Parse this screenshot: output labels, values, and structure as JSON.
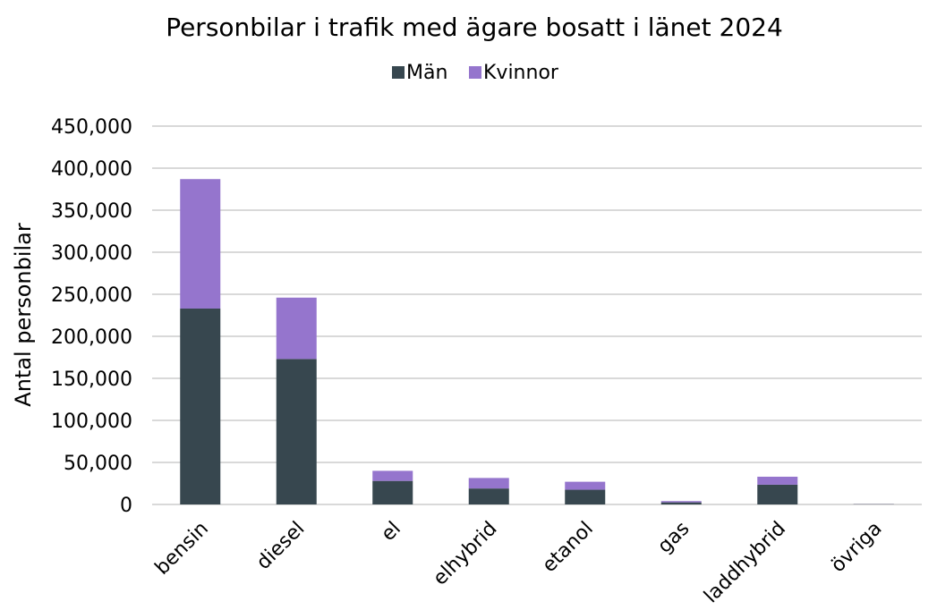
{
  "chart_data": {
    "type": "bar",
    "stacked": true,
    "title": "Personbilar i trafik med ägare bosatt i länet 2024",
    "xlabel": "",
    "ylabel": "Antal personbilar",
    "ylim": [
      0,
      450000
    ],
    "y_ticks": [
      0,
      50000,
      100000,
      150000,
      200000,
      250000,
      300000,
      350000,
      400000,
      450000
    ],
    "y_tick_labels": [
      "0",
      "50,000",
      "100,000",
      "150,000",
      "200,000",
      "250,000",
      "300,000",
      "350,000",
      "400,000",
      "450,000"
    ],
    "categories": [
      "bensin",
      "diesel",
      "el",
      "elhybrid",
      "etanol",
      "gas",
      "laddhybrid",
      "övriga"
    ],
    "series": [
      {
        "name": "Män",
        "color": "#37474f",
        "values": [
          233000,
          173000,
          28000,
          19000,
          17500,
          2500,
          23500,
          300
        ]
      },
      {
        "name": "Kvinnor",
        "color": "#9575cd",
        "values": [
          154000,
          73000,
          12000,
          12500,
          9500,
          1500,
          9500,
          100
        ]
      }
    ],
    "legend": {
      "position": "top"
    },
    "grid": true
  }
}
